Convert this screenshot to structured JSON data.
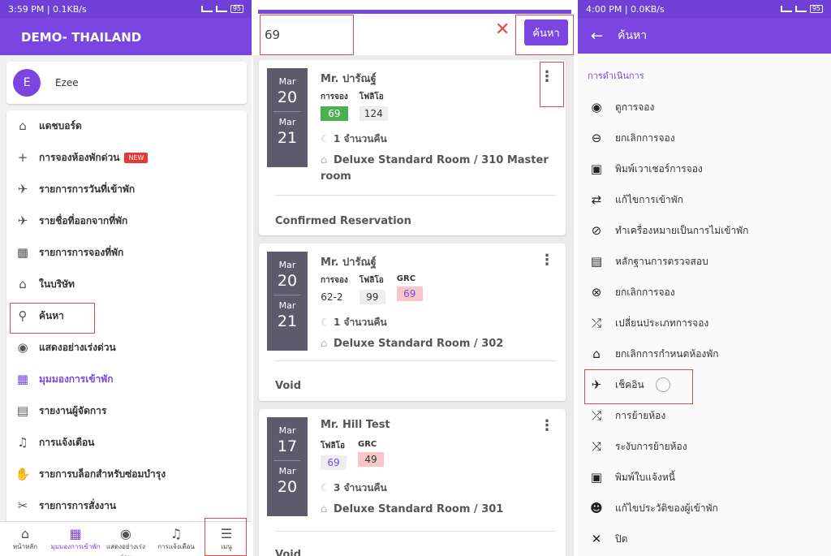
{
  "left": {
    "status_time": "3:59 PM | 0.1KB/s",
    "battery": "95",
    "title": "DEMO- THAILAND",
    "user_initial": "E",
    "user_name": "Ezee",
    "menu": [
      {
        "icon": "home-icon",
        "glyph": "⌂",
        "label": "แดชบอร์ด"
      },
      {
        "icon": "plus-icon",
        "glyph": "+",
        "label": "การจองห้องพักด่วน",
        "badge": "NEW"
      },
      {
        "icon": "plane-landing-icon",
        "glyph": "✈",
        "label": "รายการการวันที่เข้าพัก"
      },
      {
        "icon": "plane-departure-icon",
        "glyph": "✈",
        "label": "รายชื่อที่ออกจากที่พัก"
      },
      {
        "icon": "calendar-icon",
        "glyph": "▦",
        "label": "รายการการจองที่พัก"
      },
      {
        "icon": "house-outline-icon",
        "glyph": "⌂",
        "label": "ในบริษัท"
      },
      {
        "icon": "search-icon",
        "glyph": "⚲",
        "label": "ค้นหา"
      },
      {
        "icon": "eye-icon",
        "glyph": "◉",
        "label": "แสดงอย่างเร่งด่วน"
      },
      {
        "icon": "calendar-grid-icon",
        "glyph": "▦",
        "label": "มุมมองการเข้าพัก"
      },
      {
        "icon": "report-icon",
        "glyph": "▤",
        "label": "รายงานผู้จัดการ"
      },
      {
        "icon": "bell-icon",
        "glyph": "♫",
        "label": "การแจ้งเตือน"
      },
      {
        "icon": "hand-icon",
        "glyph": "✋",
        "label": "รายการบล็อกสำหรับซ่อมบำรุง"
      },
      {
        "icon": "tools-icon",
        "glyph": "✂",
        "label": "รายการการสั่งงาน"
      }
    ],
    "bottom_nav": [
      {
        "icon": "home-icon",
        "glyph": "⌂",
        "label": "หน้าหลัก"
      },
      {
        "icon": "calendar-icon",
        "glyph": "▦",
        "label": "มุมมองการเข้าพัก"
      },
      {
        "icon": "eye-icon",
        "glyph": "◉",
        "label": "แสดงอย่างเร่งด่วน"
      },
      {
        "icon": "bell-icon",
        "glyph": "♫",
        "label": "การแจ้งเตือน"
      },
      {
        "icon": "menu-icon",
        "glyph": "☰",
        "label": "เมนู"
      }
    ]
  },
  "middle": {
    "search_value": "69",
    "search_button": "ค้นหา",
    "clear_glyph": "✕",
    "cards": [
      {
        "checkin_month": "Mar",
        "checkin_day": "20",
        "checkout_month": "Mar",
        "checkout_day": "21",
        "guest": "Mr. ปารัณฐ์",
        "fields": [
          {
            "label": "การจอง",
            "value": "69",
            "style": "green"
          },
          {
            "label": "โฟลิโอ",
            "value": "124",
            "style": "grey"
          }
        ],
        "nights": "1 จำนวนคืน",
        "room": "Deluxe Standard Room / 310 Master room",
        "status": "Confirmed Reservation"
      },
      {
        "checkin_month": "Mar",
        "checkin_day": "20",
        "checkout_month": "Mar",
        "checkout_day": "21",
        "guest": "Mr. ปารัณฐ์",
        "fields": [
          {
            "label": "การจอง",
            "value": "62-2",
            "style": "plain"
          },
          {
            "label": "โฟลิโอ",
            "value": "99",
            "style": "grey"
          },
          {
            "label": "GRC",
            "value": "69",
            "style": "pink"
          }
        ],
        "nights": "1 จำนวนคืน",
        "room": "Deluxe Standard Room / 302",
        "status": "Void"
      },
      {
        "checkin_month": "Mar",
        "checkin_day": "17",
        "checkout_month": "Mar",
        "checkout_day": "20",
        "guest": "Mr. Hill Test",
        "fields": [
          {
            "label": "โฟลิโอ",
            "value": "69",
            "style": "greyv"
          },
          {
            "label": "GRC",
            "value": "49",
            "style": "pinkd"
          }
        ],
        "nights": "3 จำนวนคืน",
        "room": "Deluxe Standard Room / 301",
        "status": "Void"
      }
    ]
  },
  "right": {
    "status_time": "4:00 PM | 0.0KB/s",
    "battery": "95",
    "title": "ค้นหา",
    "section": "การดำเนินการ",
    "actions": [
      {
        "icon": "eye-icon",
        "glyph": "◉",
        "label": "ดูการจอง"
      },
      {
        "icon": "minus-circle-icon",
        "glyph": "⊖",
        "label": "ยกเลิกการจอง"
      },
      {
        "icon": "printer-icon",
        "glyph": "▣",
        "label": "พิมพ์เวาเชอร์การจอง"
      },
      {
        "icon": "swap-icon",
        "glyph": "⇄",
        "label": "แก้ไขการเข้าพัก"
      },
      {
        "icon": "eye-off-icon",
        "glyph": "⊘",
        "label": "ทำเครื่องหมายเป็นการไม่เข้าพัก"
      },
      {
        "icon": "document-icon",
        "glyph": "▤",
        "label": "หลักฐานการตรวจสอบ"
      },
      {
        "icon": "close-circle-icon",
        "glyph": "⊗",
        "label": "ยกเลิกการจอง"
      },
      {
        "icon": "shuffle-icon",
        "glyph": "⤮",
        "label": "เปลี่ยนประเภทการจอง"
      },
      {
        "icon": "home-icon",
        "glyph": "⌂",
        "label": "ยกเลิกการกำหนดห้องพัก"
      },
      {
        "icon": "airplane-icon",
        "glyph": "✈",
        "label": "เช็คอิน"
      },
      {
        "icon": "shuffle-icon",
        "glyph": "⤮",
        "label": "การย้ายห้อง"
      },
      {
        "icon": "shuffle-cross-icon",
        "glyph": "⤨",
        "label": "ระงับการย้ายห้อง"
      },
      {
        "icon": "printer-icon",
        "glyph": "▣",
        "label": "พิมพ์ใบแจ้งหนี้"
      },
      {
        "icon": "person-icon",
        "glyph": "☻",
        "label": "แก้ไขประวัติของผู้เข้าพัก"
      },
      {
        "icon": "close-icon",
        "glyph": "✕",
        "label": "ปิด"
      }
    ]
  },
  "colors": {
    "primary": "#7a45e0",
    "highlight": "#e04b4b"
  }
}
